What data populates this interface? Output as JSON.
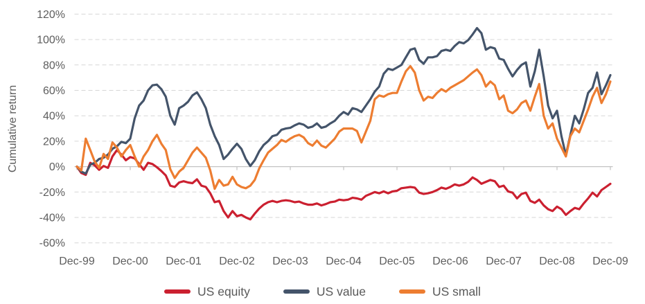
{
  "chart_data": {
    "type": "line",
    "title": "",
    "xlabel": "",
    "ylabel": "Cumulative return",
    "ylim": [
      -60,
      120
    ],
    "ytick_step_pct": 20,
    "ytick_labels": [
      "120%",
      "100%",
      "80%",
      "60%",
      "40%",
      "20%",
      "0%",
      "-20%",
      "-40%",
      "-60%"
    ],
    "ytick_values": [
      120,
      100,
      80,
      60,
      40,
      20,
      0,
      -20,
      -40,
      -60
    ],
    "xtick_labels": [
      "Dec-99",
      "Dec-00",
      "Dec-01",
      "Dec-02",
      "Dec-03",
      "Dec-04",
      "Dec-05",
      "Dec-06",
      "Dec-07",
      "Dec-08",
      "Dec-09"
    ],
    "x_unit": "monthly observations, Dec-1999 to Dec-2009 (121 points)",
    "grid": "horizontal-dashed",
    "legend_position": "bottom",
    "axis_text_color": "#5d5d5d",
    "gridline_color": "#d6d6d6",
    "zero_axis_color": "#c2c2c2",
    "series": [
      {
        "name": "US equity",
        "color": "#cb2030",
        "values": [
          0,
          -5,
          -6.5,
          3,
          1,
          -2.5,
          0.5,
          -1,
          8,
          13,
          9.5,
          5,
          7.5,
          6.5,
          2,
          -2.5,
          3,
          2,
          -0.5,
          -3.5,
          -7,
          -15,
          -16,
          -12.5,
          -11.5,
          -12.5,
          -13,
          -10,
          -15,
          -16,
          -21,
          -28,
          -27,
          -35,
          -40,
          -35,
          -39,
          -38,
          -40,
          -41.5,
          -37,
          -33,
          -30,
          -28,
          -27,
          -28,
          -27,
          -26.5,
          -27,
          -28,
          -27.5,
          -29,
          -30,
          -30,
          -29,
          -30.5,
          -29.5,
          -28,
          -27.5,
          -26,
          -26.5,
          -26,
          -24.5,
          -25,
          -26,
          -23,
          -21.5,
          -20,
          -21,
          -19.5,
          -21,
          -19.5,
          -19,
          -17,
          -16.5,
          -16,
          -16.5,
          -20.5,
          -21.5,
          -21,
          -20,
          -18.5,
          -16.5,
          -17.5,
          -16,
          -14,
          -15,
          -14,
          -12,
          -8.5,
          -10.5,
          -13.5,
          -12,
          -10.5,
          -11.5,
          -16,
          -15,
          -19.5,
          -20.5,
          -25,
          -21.5,
          -20.5,
          -27,
          -28.5,
          -26,
          -30.5,
          -33.5,
          -35,
          -31.5,
          -33.5,
          -38,
          -35,
          -32.5,
          -33.5,
          -29,
          -25,
          -20.5,
          -23.5,
          -18.5,
          -16,
          -13.5
        ]
      },
      {
        "name": "US value",
        "color": "#44546a",
        "values": [
          0,
          -4,
          -5.5,
          1.5,
          3,
          6,
          7,
          9.5,
          14,
          16,
          19.5,
          18.5,
          22,
          38,
          48,
          52,
          60,
          64,
          64.5,
          61,
          55,
          40,
          33,
          46,
          48,
          51,
          56,
          58.5,
          53,
          46,
          33,
          24,
          17,
          6,
          9.5,
          14,
          18,
          14,
          6,
          0.5,
          5,
          12,
          17,
          20,
          24,
          25,
          29,
          30,
          30.5,
          32.5,
          34,
          33,
          30.5,
          31.5,
          34,
          30.5,
          31.5,
          34,
          36,
          40,
          43,
          41,
          46,
          45,
          43,
          48,
          53,
          59,
          63,
          73,
          77,
          76,
          78,
          80,
          86,
          92,
          93,
          84,
          81,
          86,
          86,
          87,
          91,
          92,
          91,
          95,
          98,
          97,
          99.5,
          104,
          109,
          105,
          92,
          94,
          93,
          85,
          84,
          77,
          71,
          76,
          80,
          82,
          63,
          75,
          92,
          71,
          48,
          38,
          44,
          24,
          9,
          25,
          40,
          34,
          45,
          58,
          62,
          74,
          57,
          64,
          72
        ]
      },
      {
        "name": "US small",
        "color": "#ed7d31",
        "values": [
          0,
          -3,
          22,
          13,
          4,
          -1,
          10,
          6,
          19,
          15,
          8,
          13,
          17,
          8,
          0,
          8,
          13,
          20,
          25,
          18,
          13,
          -2,
          -9,
          -4,
          -1,
          5,
          11,
          15,
          11,
          7,
          -3,
          -17.5,
          -10.5,
          -15,
          -14,
          -8,
          -14,
          -16,
          -17,
          -15,
          -10.5,
          -1.5,
          5,
          11,
          14,
          17,
          21,
          19.5,
          22,
          24,
          25,
          23,
          18.5,
          16.5,
          20.5,
          16.5,
          15,
          18.5,
          22,
          27.5,
          30,
          30,
          30,
          28,
          19,
          27.5,
          36,
          53,
          56,
          55,
          57,
          58,
          58,
          67,
          75,
          79,
          74,
          60,
          52,
          55,
          54,
          58,
          61,
          59,
          62,
          64,
          66,
          68,
          71,
          74,
          76.5,
          72,
          63,
          67,
          64,
          53,
          56,
          44,
          42,
          45,
          50,
          52,
          44,
          55,
          65,
          40,
          30,
          34,
          22,
          15,
          8,
          24,
          30,
          27,
          36,
          45,
          55,
          62,
          50,
          57,
          67
        ]
      }
    ]
  },
  "legend": {
    "items": [
      {
        "label": "US equity"
      },
      {
        "label": "US value"
      },
      {
        "label": "US small"
      }
    ]
  }
}
